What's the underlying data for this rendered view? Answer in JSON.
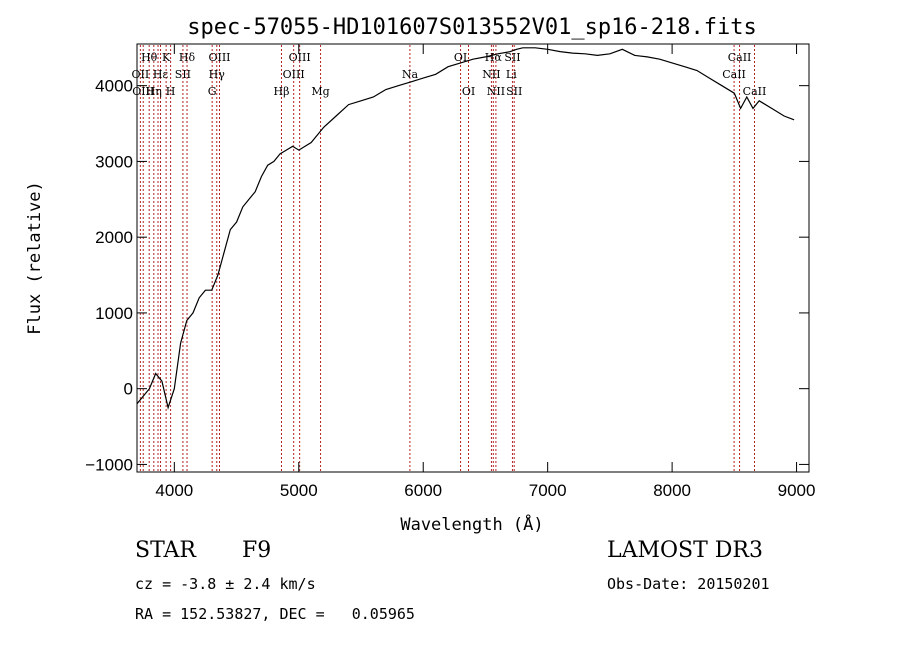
{
  "chart_data": {
    "type": "line",
    "title": "spec-57055-HD101607S013552V01_sp16-218.fits",
    "xlabel": "Wavelength (Å)",
    "ylabel": "Flux (relative)",
    "xlim": [
      3700,
      9100
    ],
    "ylim": [
      -1100,
      4550
    ],
    "xticks": [
      4000,
      5000,
      6000,
      7000,
      8000,
      9000
    ],
    "yticks": [
      -1000,
      0,
      1000,
      2000,
      3000,
      4000
    ],
    "grid": false,
    "series": [
      {
        "x": [
          3700,
          3750,
          3800,
          3850,
          3900,
          3950,
          4000,
          4050,
          4100,
          4150,
          4200,
          4250,
          4300,
          4350,
          4400,
          4450,
          4500,
          4550,
          4600,
          4650,
          4700,
          4750,
          4800,
          4850,
          4900,
          4950,
          5000,
          5100,
          5200,
          5300,
          5400,
          5500,
          5600,
          5700,
          5800,
          5900,
          6000,
          6100,
          6200,
          6300,
          6400,
          6500,
          6600,
          6700,
          6750,
          6800,
          6900,
          7000,
          7100,
          7200,
          7300,
          7400,
          7500,
          7600,
          7700,
          7800,
          7900,
          8000,
          8100,
          8200,
          8300,
          8400,
          8500,
          8550,
          8600,
          8650,
          8700,
          8800,
          8900,
          8980
        ],
        "y": [
          -200,
          -100,
          0,
          200,
          100,
          -250,
          0,
          600,
          900,
          1000,
          1200,
          1300,
          1300,
          1500,
          1800,
          2100,
          2200,
          2400,
          2500,
          2600,
          2800,
          2950,
          3000,
          3100,
          3150,
          3200,
          3150,
          3250,
          3450,
          3600,
          3750,
          3800,
          3850,
          3950,
          4000,
          4050,
          4100,
          4150,
          4250,
          4300,
          4350,
          4380,
          4420,
          4450,
          4480,
          4500,
          4500,
          4480,
          4450,
          4430,
          4420,
          4400,
          4420,
          4480,
          4400,
          4380,
          4350,
          4300,
          4250,
          4200,
          4100,
          4000,
          3900,
          3700,
          3850,
          3700,
          3800,
          3700,
          3600,
          3550
        ]
      }
    ],
    "vlines": [
      3727,
      3750,
      3798,
      3835,
      3869,
      3889,
      3934,
      3970,
      4069,
      4102,
      4304,
      4341,
      4363,
      4861,
      4959,
      5007,
      5175,
      5893,
      6300,
      6364,
      6548,
      6563,
      6584,
      6717,
      6731,
      8498,
      8542,
      8662
    ],
    "line_labels": [
      {
        "text": "Hθ",
        "x": 3798,
        "row": 0
      },
      {
        "text": "K",
        "x": 3934,
        "row": 0
      },
      {
        "text": "Hδ",
        "x": 4102,
        "row": 0
      },
      {
        "text": "OIII",
        "x": 4363,
        "row": 0
      },
      {
        "text": "OIII",
        "x": 5007,
        "row": 0
      },
      {
        "text": "OI",
        "x": 6300,
        "row": 0
      },
      {
        "text": "Hα",
        "x": 6563,
        "row": 0
      },
      {
        "text": "SII",
        "x": 6717,
        "row": 0
      },
      {
        "text": "CaII",
        "x": 8542,
        "row": 0
      },
      {
        "text": "OII",
        "x": 3727,
        "row": 1
      },
      {
        "text": "Hε",
        "x": 3889,
        "row": 1
      },
      {
        "text": "SII",
        "x": 4069,
        "row": 1
      },
      {
        "text": "Hγ",
        "x": 4341,
        "row": 1
      },
      {
        "text": "OIII",
        "x": 4959,
        "row": 1
      },
      {
        "text": "Na",
        "x": 5893,
        "row": 1
      },
      {
        "text": "NII",
        "x": 6548,
        "row": 1
      },
      {
        "text": "Li",
        "x": 6708,
        "row": 1
      },
      {
        "text": "CaII",
        "x": 8498,
        "row": 1
      },
      {
        "text": "OIII",
        "x": 3750,
        "row": 2
      },
      {
        "text": "Hη",
        "x": 3835,
        "row": 2
      },
      {
        "text": "H",
        "x": 3970,
        "row": 2
      },
      {
        "text": "G",
        "x": 4304,
        "row": 2
      },
      {
        "text": "Hβ",
        "x": 4861,
        "row": 2
      },
      {
        "text": "Mg",
        "x": 5175,
        "row": 2
      },
      {
        "text": "OI",
        "x": 6364,
        "row": 2
      },
      {
        "text": "NII",
        "x": 6584,
        "row": 2
      },
      {
        "text": "SII",
        "x": 6731,
        "row": 2
      },
      {
        "text": "CaII",
        "x": 8662,
        "row": 2
      }
    ]
  },
  "info": {
    "object_class": "STAR",
    "subclass": "F9",
    "survey": "LAMOST DR3",
    "cz": "cz = -3.8 ± 2.4 km/s",
    "obs_date": "Obs-Date: 20150201",
    "radec": "RA = 152.53827, DEC =   0.05965"
  },
  "colors": {
    "spectrum": "#000000",
    "line_markers": "#b22222",
    "axis": "#000000"
  }
}
